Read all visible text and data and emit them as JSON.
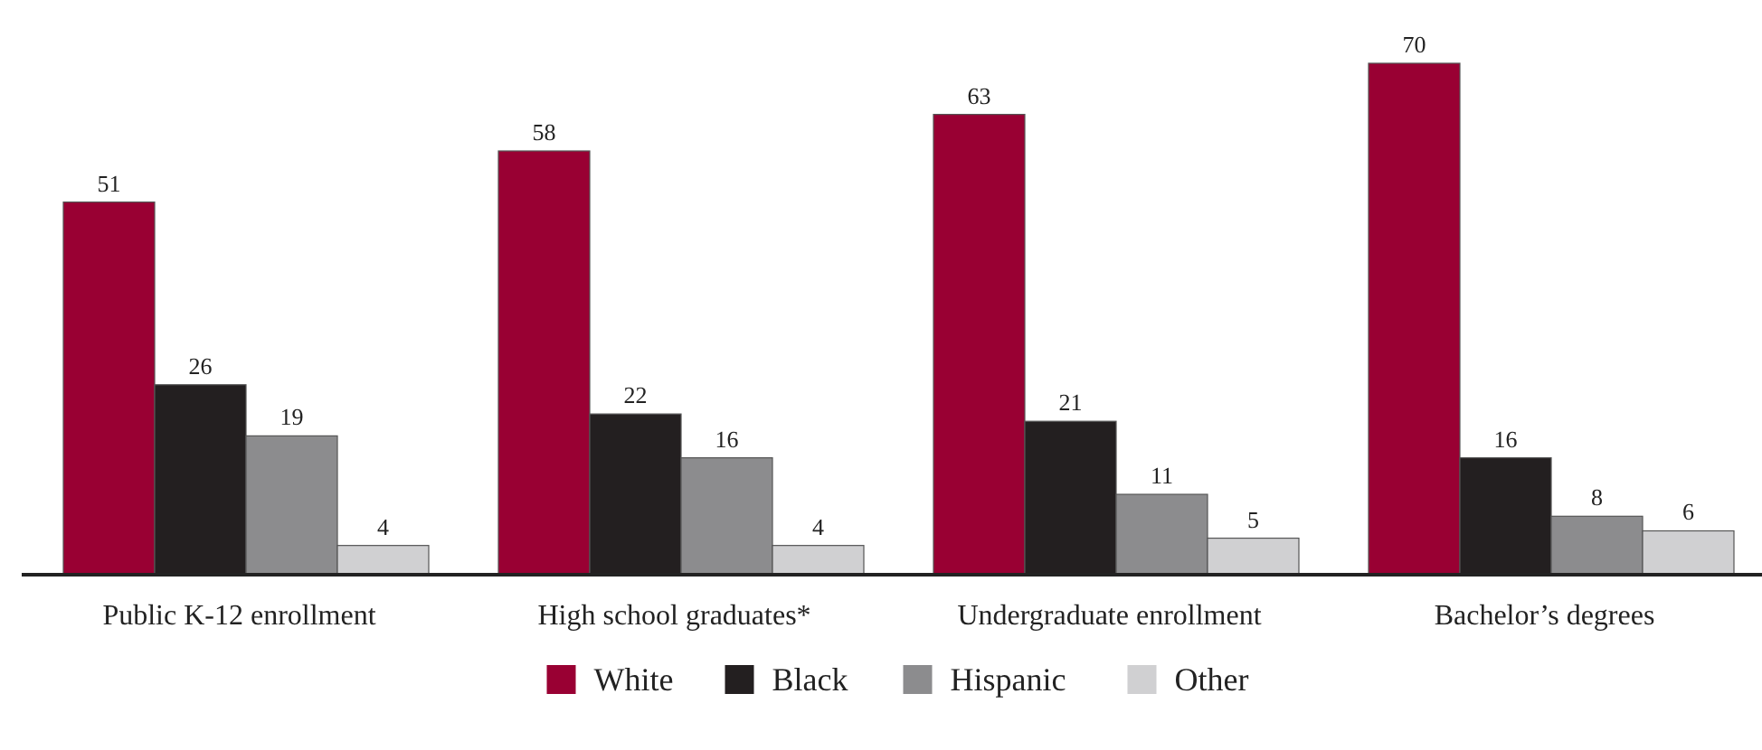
{
  "chart_data": {
    "type": "bar",
    "categories": [
      "Public K-12 enrollment",
      "High school graduates*",
      "Undergraduate enrollment",
      "Bachelor’s degrees"
    ],
    "series": [
      {
        "name": "White",
        "color": "#990033",
        "values": [
          51,
          58,
          63,
          70
        ]
      },
      {
        "name": "Black",
        "color": "#231f20",
        "values": [
          26,
          22,
          21,
          16
        ]
      },
      {
        "name": "Hispanic",
        "color": "#8c8c8e",
        "values": [
          19,
          16,
          11,
          8
        ]
      },
      {
        "name": "Other",
        "color": "#d0d0d2",
        "values": [
          4,
          4,
          5,
          6
        ]
      }
    ],
    "data_labels": true,
    "legend": "bottom"
  }
}
